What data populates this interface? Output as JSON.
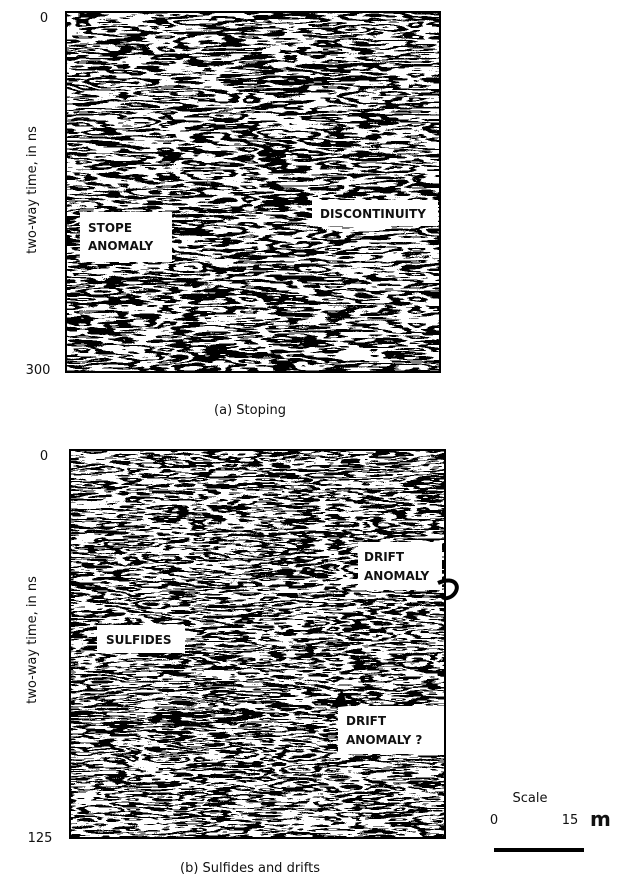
{
  "panel_a": {
    "axis_label": "two-way time, in ns",
    "top_tick": "0",
    "bottom_tick": "300",
    "annotations": [
      {
        "lines": [
          "STOPE",
          "ANOMALY"
        ]
      },
      {
        "lines": [
          "DISCONTINUITY"
        ]
      }
    ],
    "caption": "(a) Stoping"
  },
  "panel_b": {
    "axis_label": "two-way time, in ns",
    "top_tick": "0",
    "bottom_tick": "125",
    "annotations": [
      {
        "lines": [
          "SULFIDES"
        ]
      },
      {
        "lines": [
          "DRIFT",
          "ANOMALY"
        ]
      },
      {
        "lines": [
          "DRIFT",
          "ANOMALY ?"
        ]
      }
    ],
    "caption": "(b) Sulfides and drifts"
  },
  "scale": {
    "title": "Scale",
    "start": "0",
    "end": "15",
    "unit": "m"
  }
}
